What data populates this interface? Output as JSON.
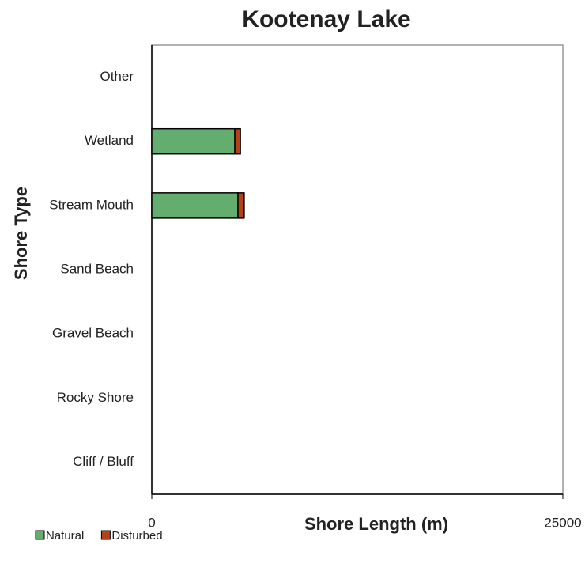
{
  "chart_data": {
    "type": "stacked_barh",
    "title": "Kootenay Lake",
    "xlabel": "Shore Length (m)",
    "ylabel": "Shore Type",
    "categories": [
      "Cliff / Bluff",
      "Rocky Shore",
      "Gravel Beach",
      "Sand Beach",
      "Stream Mouth",
      "Wetland",
      "Other"
    ],
    "series": [
      {
        "name": "Natural",
        "color": "#63ad6f",
        "values": [
          0,
          0,
          0,
          0,
          5240,
          5050,
          0
        ]
      },
      {
        "name": "Disturbed",
        "color": "#b5411c",
        "values": [
          0,
          0,
          0,
          0,
          380,
          340,
          0
        ]
      }
    ],
    "xlim": [
      0,
      25000
    ],
    "xticks": [
      0,
      25000
    ],
    "legend": "bottom-left"
  }
}
